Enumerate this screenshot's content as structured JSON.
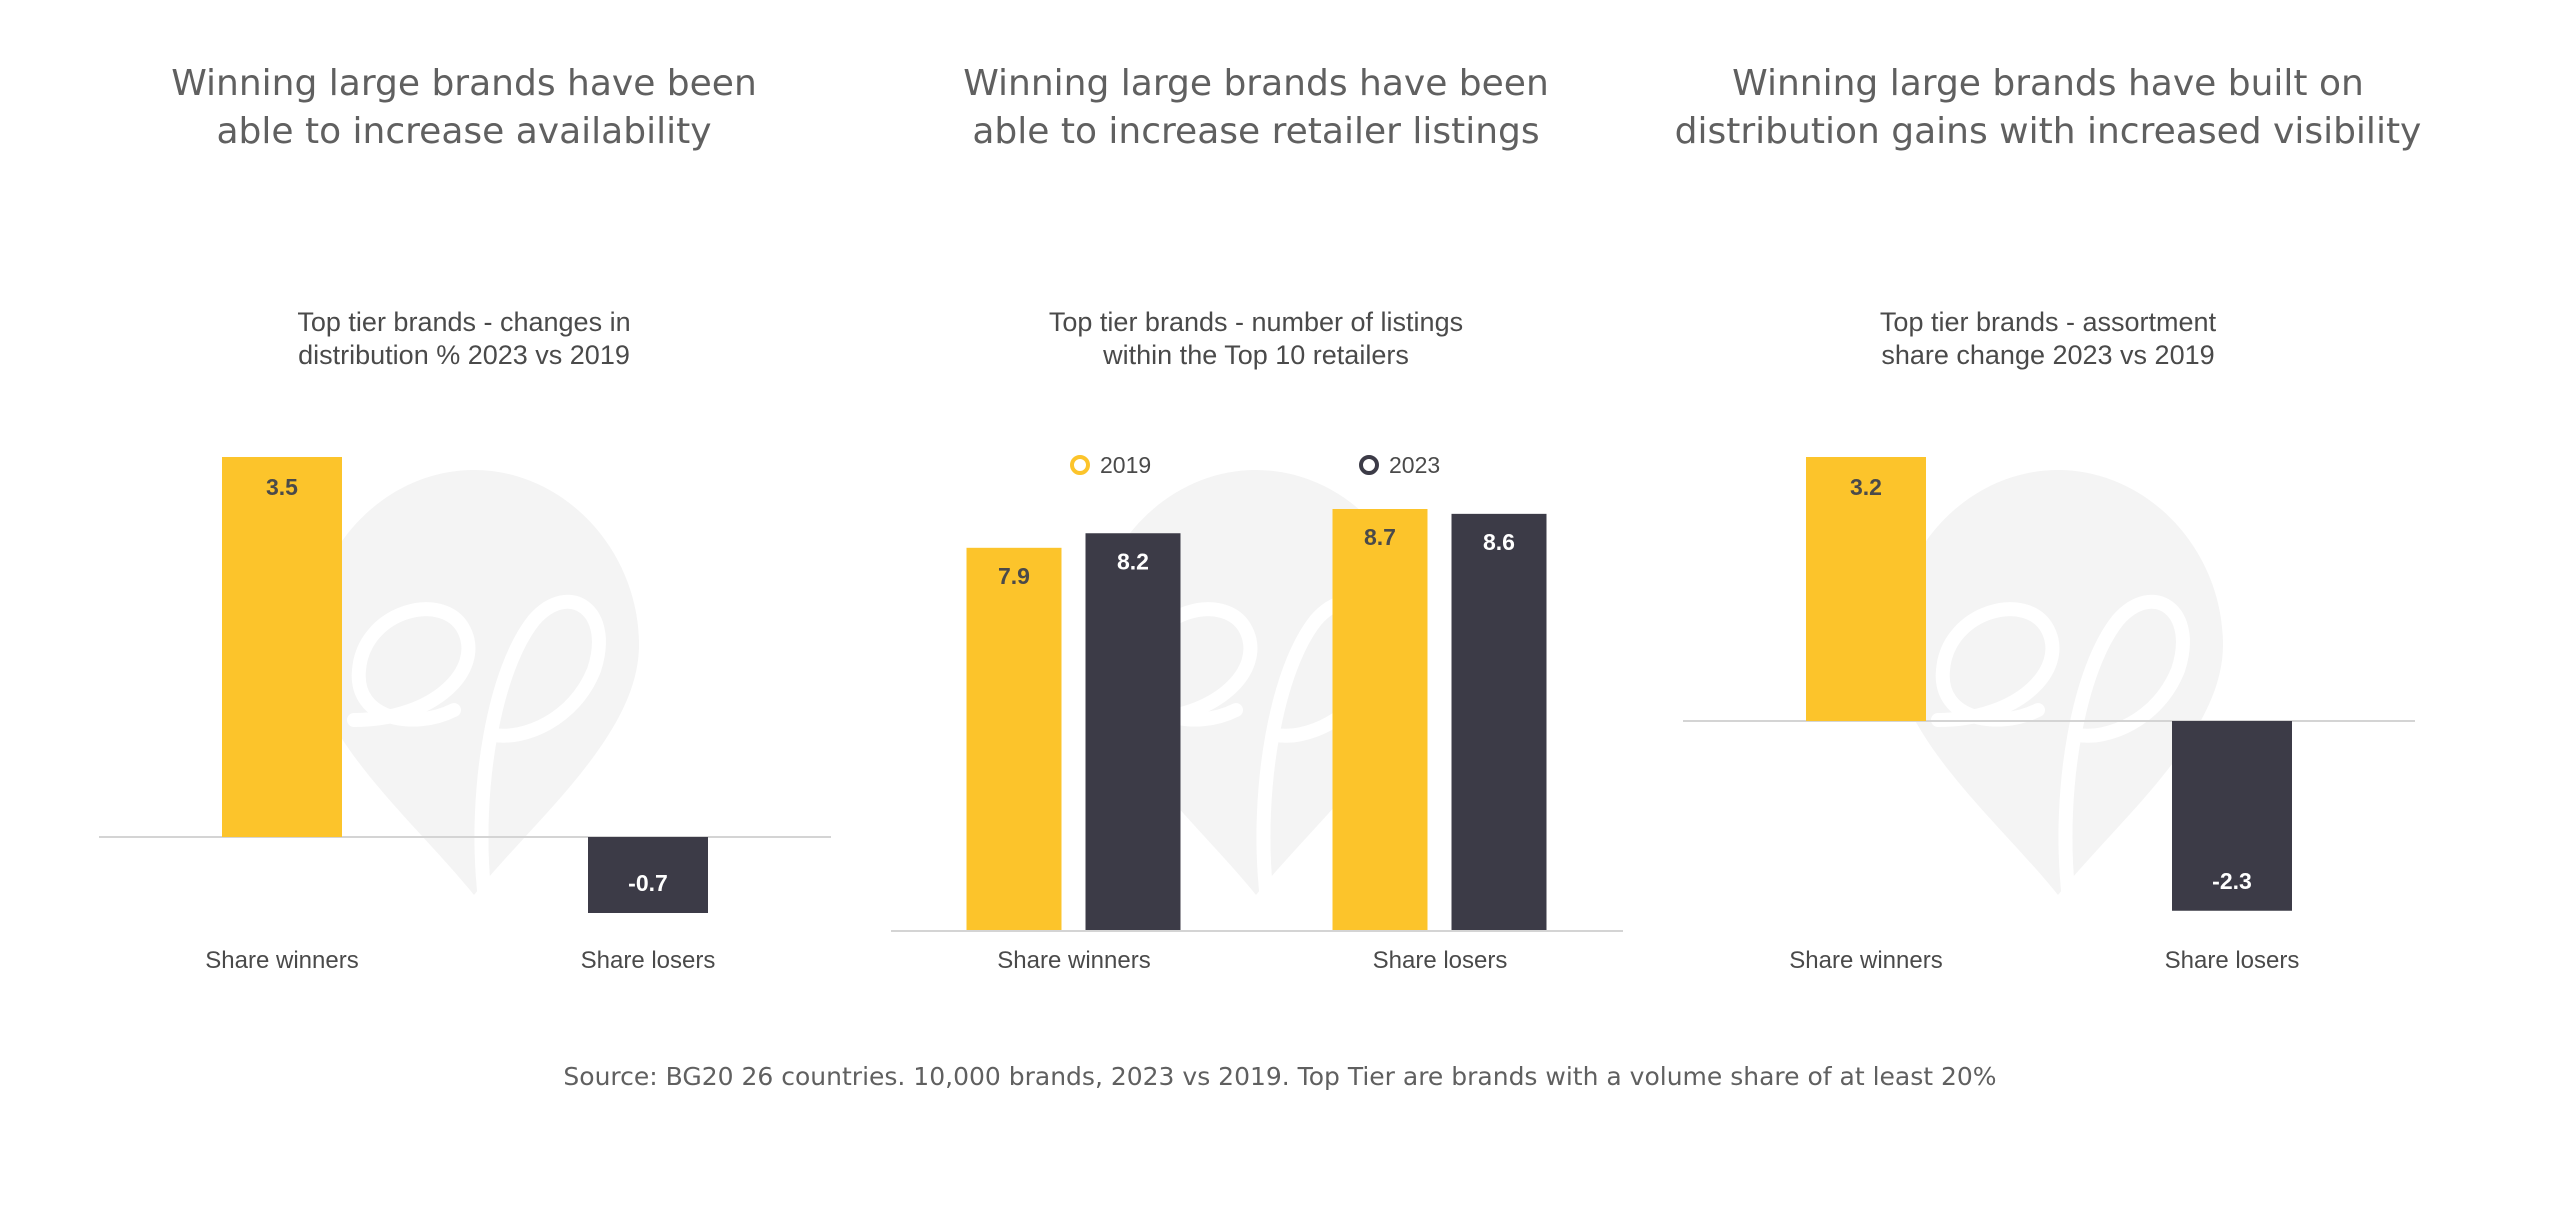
{
  "colors": {
    "yellow": "#fcc42b",
    "dark": "#3c3b47",
    "axis": "#d4d4d4",
    "label": "#4a4a4a",
    "watermark": "#f4f4f4"
  },
  "panels": [
    {
      "headline": [
        "Winning large brands have been",
        "able to increase availability"
      ],
      "subtitle": [
        "Top tier brands - changes in",
        "distribution % 2023 vs 2019"
      ]
    },
    {
      "headline": [
        "Winning large brands have been",
        "able to increase retailer listings"
      ],
      "subtitle": [
        "Top tier brands - number of listings",
        "within the Top 10 retailers"
      ]
    },
    {
      "headline": [
        "Winning large brands have built on",
        "distribution gains with increased visibility"
      ],
      "subtitle": [
        "Top tier brands - assortment",
        "share change 2023 vs 2019"
      ]
    }
  ],
  "source": "Source: BG20 26 countries. 10,000 brands, 2023 vs 2019. Top Tier are brands with a volume share of at least 20%",
  "chart_data": [
    {
      "type": "bar",
      "categories": [
        "Share winners",
        "Share losers"
      ],
      "values": [
        3.5,
        -0.7
      ],
      "bar_colors": [
        "#fcc42b",
        "#3c3b47"
      ],
      "ylim": [
        -1,
        3.5
      ]
    },
    {
      "type": "bar",
      "categories": [
        "Share winners",
        "Share losers"
      ],
      "series": [
        {
          "name": "2019",
          "values": [
            7.9,
            8.7
          ],
          "color": "#fcc42b"
        },
        {
          "name": "2023",
          "values": [
            8.2,
            8.6
          ],
          "color": "#3c3b47"
        }
      ],
      "legend": "top",
      "ylim": [
        0,
        8.7
      ]
    },
    {
      "type": "bar",
      "categories": [
        "Share winners",
        "Share losers"
      ],
      "values": [
        3.2,
        -2.3
      ],
      "bar_colors": [
        "#fcc42b",
        "#3c3b47"
      ],
      "ylim": [
        -2.3,
        3.2
      ]
    }
  ]
}
